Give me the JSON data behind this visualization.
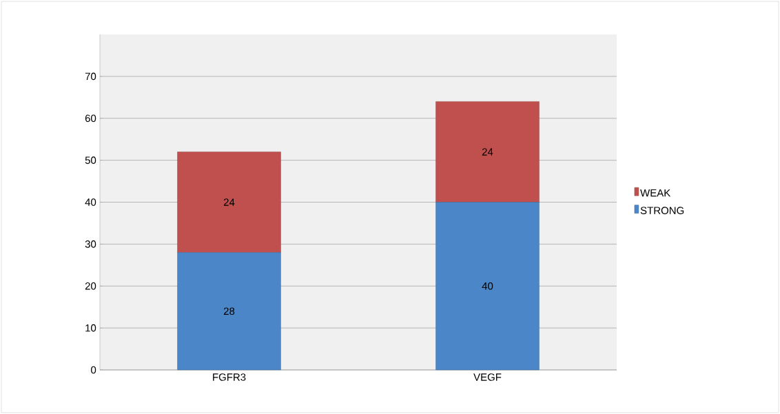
{
  "chart_data": {
    "type": "bar",
    "stacked": true,
    "categories": [
      "FGFR3",
      "VEGF"
    ],
    "series": [
      {
        "name": "STRONG",
        "color": "#4a86c8",
        "values": [
          28,
          40
        ]
      },
      {
        "name": "WEAK",
        "color": "#c0504d",
        "values": [
          24,
          24
        ]
      }
    ],
    "ylim": [
      0,
      80
    ],
    "yticks": [
      0,
      10,
      20,
      30,
      40,
      50,
      60,
      70
    ],
    "grid": "y",
    "legend": "right",
    "data_labels": true
  }
}
